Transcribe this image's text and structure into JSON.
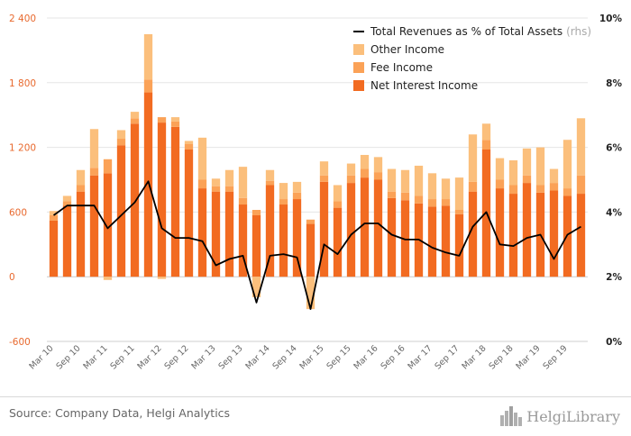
{
  "chart_data": {
    "type": "bar",
    "subtype": "stacked bar with line overlay",
    "categories": [
      "Mar 10",
      "Jun 10",
      "Sep 10",
      "Dec 10",
      "Mar 11",
      "Jun 11",
      "Sep 11",
      "Dec 11",
      "Mar 12",
      "Jun 12",
      "Sep 12",
      "Dec 12",
      "Mar 13",
      "Jun 13",
      "Sep 13",
      "Dec 13",
      "Mar 14",
      "Jun 14",
      "Sep 14",
      "Dec 14",
      "Mar 15",
      "Jun 15",
      "Sep 15",
      "Dec 15",
      "Mar 16",
      "Jun 16",
      "Sep 16",
      "Dec 16",
      "Mar 17",
      "Jun 17",
      "Sep 17",
      "Dec 17",
      "Mar 18",
      "Jun 18",
      "Sep 18",
      "Dec 18",
      "Mar 19",
      "Jun 19",
      "Sep 19",
      "Dec 19"
    ],
    "x_tick_labels": [
      "Mar 10",
      "Sep 10",
      "Mar 11",
      "Sep 11",
      "Mar 12",
      "Sep 12",
      "Mar 13",
      "Sep 13",
      "Mar 14",
      "Sep 14",
      "Mar 15",
      "Sep 15",
      "Mar 16",
      "Sep 16",
      "Mar 17",
      "Sep 17",
      "Mar 18",
      "Sep 18",
      "Mar 19",
      "Sep 19"
    ],
    "series": [
      {
        "name": "Net Interest Income",
        "axis": "left",
        "color": "#f26b21",
        "values": [
          520,
          660,
          790,
          940,
          960,
          1220,
          1420,
          1710,
          1430,
          1390,
          1180,
          820,
          790,
          790,
          670,
          570,
          850,
          670,
          720,
          490,
          880,
          640,
          870,
          920,
          900,
          730,
          710,
          680,
          650,
          660,
          580,
          790,
          1180,
          820,
          770,
          870,
          780,
          800,
          750,
          770
        ]
      },
      {
        "name": "Fee Income",
        "axis": "left",
        "color": "#fba257",
        "values": [
          50,
          40,
          60,
          70,
          130,
          60,
          50,
          120,
          50,
          50,
          50,
          80,
          50,
          50,
          60,
          50,
          40,
          50,
          60,
          40,
          60,
          60,
          70,
          80,
          70,
          60,
          70,
          70,
          70,
          60,
          40,
          90,
          90,
          80,
          80,
          70,
          70,
          70,
          70,
          170
        ]
      },
      {
        "name": "Other Income",
        "axis": "left",
        "color": "#fbbf7c",
        "values": [
          40,
          50,
          140,
          360,
          -30,
          80,
          60,
          420,
          -20,
          40,
          30,
          390,
          70,
          150,
          290,
          -190,
          100,
          150,
          100,
          -300,
          130,
          150,
          110,
          130,
          140,
          210,
          210,
          280,
          240,
          190,
          300,
          440,
          150,
          200,
          230,
          250,
          350,
          130,
          450,
          530
        ]
      },
      {
        "name": "Total Revenues as % of Total Assets",
        "axis": "right",
        "color": "#000000",
        "type": "line",
        "values": [
          3.9,
          4.2,
          4.2,
          4.2,
          3.5,
          3.9,
          4.3,
          4.95,
          3.5,
          3.2,
          3.2,
          3.1,
          2.35,
          2.55,
          2.65,
          1.2,
          2.65,
          2.7,
          2.6,
          1.0,
          3.0,
          2.7,
          3.3,
          3.65,
          3.65,
          3.3,
          3.15,
          3.15,
          2.9,
          2.75,
          2.65,
          3.55,
          4.0,
          3.0,
          2.95,
          3.2,
          3.3,
          2.55,
          3.3,
          3.55
        ]
      }
    ],
    "y_left": {
      "ylim": [
        -600,
        2400
      ],
      "ticks": [
        "-600",
        "0",
        "600",
        "1 200",
        "1 800",
        "2 400"
      ]
    },
    "y_right": {
      "ylim": [
        0,
        10
      ],
      "ticks": [
        "0%",
        "2%",
        "4%",
        "6%",
        "8%",
        "10%"
      ]
    },
    "legend": {
      "position": "top-right",
      "items": [
        {
          "label": "Total Revenues as % of Total Assets",
          "note": "(rhs)",
          "kind": "line",
          "color": "#000000"
        },
        {
          "label": "Other Income",
          "kind": "box",
          "color": "#fbbf7c"
        },
        {
          "label": "Fee Income",
          "kind": "box",
          "color": "#fba257"
        },
        {
          "label": "Net Interest Income",
          "kind": "box",
          "color": "#f26b21"
        }
      ]
    },
    "grid": true
  },
  "footer": {
    "source": "Source: Company Data, Helgi Analytics",
    "brand": "HelgiLibrary"
  },
  "colors": {
    "left_axis": "#e8692e",
    "grid": "#e6e6e6"
  },
  "icons": {
    "brand_logo": "city-skyline-icon"
  }
}
